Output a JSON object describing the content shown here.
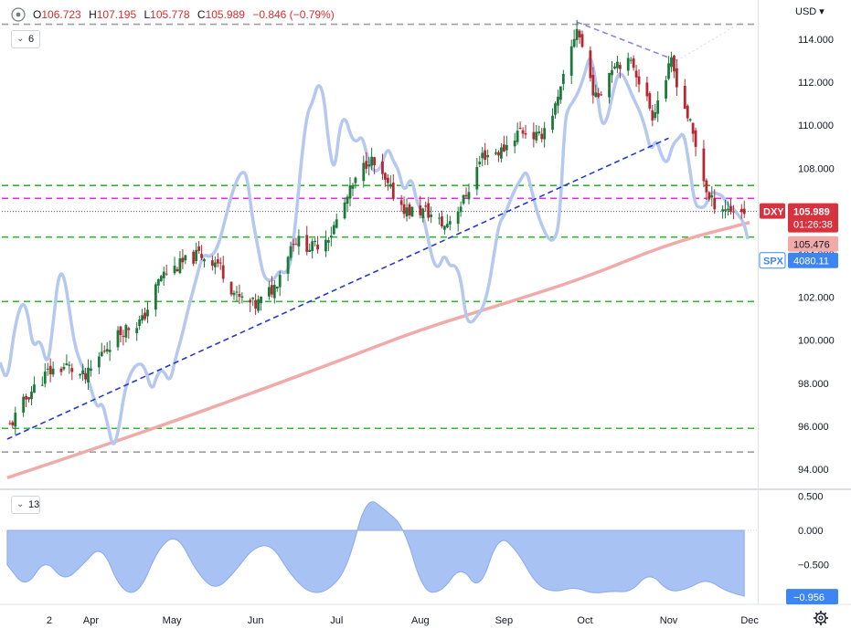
{
  "header": {
    "open_label": "O",
    "open": "106.723",
    "high_label": "H",
    "high": "107.195",
    "low_label": "L",
    "low": "105.778",
    "close_label": "C",
    "close": "105.989",
    "change": "−0.846 (−0.79%)"
  },
  "currency_menu": "USD ▾",
  "main_pane_indicator_count": "6",
  "sub_pane_indicator_count": "13",
  "labels": {
    "dxy_name": "DXY",
    "dxy_price": "105.989",
    "dxy_countdown": "01:26:38",
    "ma_value": "105.476",
    "spx_name": "SPX",
    "spx_price": "4080.11",
    "corr_value": "−0.956"
  },
  "colors": {
    "candle_up": "#1b7a3a",
    "candle_down": "#b22833",
    "spx_line": "#b4c8f0",
    "moving_average": "#f0aaa8",
    "trendline": "#2338d4",
    "support_resistance": "#36b536",
    "magenta_level": "#e62de6",
    "gray_level": "#9e9e9e",
    "correlation_fill": "#9ab7f2",
    "price_tag": "#d7333f",
    "spx_tag": "#3d86f2"
  },
  "chart_data": [
    {
      "type": "candlestick",
      "title": "",
      "x": [
        "2",
        "Apr",
        "May",
        "Jun",
        "Jul",
        "Aug",
        "Sep",
        "Oct",
        "Nov",
        "Dec"
      ],
      "ylim": [
        93.2,
        115.2
      ],
      "y_ticks": [
        "94.000",
        "96.000",
        "98.000",
        "100.000",
        "102.000",
        "104.000",
        "106.000",
        "108.000",
        "110.000",
        "112.000",
        "114.000"
      ],
      "y_tick_values": [
        94,
        96,
        98,
        100,
        102,
        104,
        106,
        108,
        110,
        112,
        114
      ],
      "grid": false,
      "series": [
        {
          "name": "DXY",
          "close_path": [
            [
              "2022-03-02",
              96.0
            ],
            [
              "2022-03-09",
              97.5
            ],
            [
              "2022-03-16",
              98.5
            ],
            [
              "2022-03-23",
              98.8
            ],
            [
              "2022-03-30",
              98.2
            ],
            [
              "2022-04-06",
              99.6
            ],
            [
              "2022-04-13",
              100.5
            ],
            [
              "2022-04-20",
              100.9
            ],
            [
              "2022-04-27",
              103.0
            ],
            [
              "2022-05-04",
              103.5
            ],
            [
              "2022-05-11",
              104.0
            ],
            [
              "2022-05-18",
              103.6
            ],
            [
              "2022-05-25",
              102.0
            ],
            [
              "2022-06-01",
              101.6
            ],
            [
              "2022-06-08",
              102.5
            ],
            [
              "2022-06-15",
              104.7
            ],
            [
              "2022-06-22",
              104.3
            ],
            [
              "2022-06-29",
              105.0
            ],
            [
              "2022-07-06",
              106.9
            ],
            [
              "2022-07-13",
              108.5
            ],
            [
              "2022-07-20",
              107.1
            ],
            [
              "2022-07-27",
              106.0
            ],
            [
              "2022-08-03",
              106.0
            ],
            [
              "2022-08-10",
              105.3
            ],
            [
              "2022-08-17",
              106.5
            ],
            [
              "2022-08-24",
              108.6
            ],
            [
              "2022-08-31",
              108.8
            ],
            [
              "2022-09-07",
              109.8
            ],
            [
              "2022-09-14",
              109.4
            ],
            [
              "2022-09-21",
              111.1
            ],
            [
              "2022-09-28",
              114.6
            ],
            [
              "2022-10-05",
              111.2
            ],
            [
              "2022-10-12",
              113.0
            ],
            [
              "2022-10-19",
              112.8
            ],
            [
              "2022-10-26",
              110.5
            ],
            [
              "2022-11-02",
              112.9
            ],
            [
              "2022-11-09",
              110.0
            ],
            [
              "2022-11-16",
              106.5
            ],
            [
              "2022-11-23",
              106.1
            ],
            [
              "2022-11-30",
              105.989
            ]
          ],
          "last_close": 105.989
        },
        {
          "name": "SPX",
          "overlay": true,
          "last_value": 4080.11
        },
        {
          "name": "200-day moving average",
          "path": [
            [
              "2022-03-01",
              93.6
            ],
            [
              "2022-04-01",
              94.9
            ],
            [
              "2022-05-01",
              96.2
            ],
            [
              "2022-06-01",
              97.6
            ],
            [
              "2022-07-01",
              99.0
            ],
            [
              "2022-08-01",
              100.5
            ],
            [
              "2022-09-01",
              101.7
            ],
            [
              "2022-10-01",
              102.9
            ],
            [
              "2022-11-01",
              104.5
            ],
            [
              "2022-12-01",
              105.476
            ]
          ],
          "last_value": 105.476
        }
      ],
      "horizontal_levels": [
        {
          "value": 114.7,
          "style": "dashed",
          "color": "gray"
        },
        {
          "value": 107.2,
          "style": "dashed",
          "color": "green"
        },
        {
          "value": 106.6,
          "style": "dashed",
          "color": "magenta"
        },
        {
          "value": 104.8,
          "style": "dashed",
          "color": "green"
        },
        {
          "value": 101.8,
          "style": "dashed",
          "color": "green"
        },
        {
          "value": 95.9,
          "style": "dashed",
          "color": "green"
        },
        {
          "value": 94.8,
          "style": "dashed",
          "color": "gray"
        }
      ],
      "trendlines": [
        {
          "from": [
            "2022-03-01",
            95.4
          ],
          "to": [
            "2022-11-01",
            109.4
          ],
          "color": "blue",
          "style": "dashed"
        },
        {
          "from": [
            "2022-09-28",
            114.8
          ],
          "to": [
            "2022-11-04",
            113.0
          ],
          "color": "purple",
          "style": "dashed"
        }
      ]
    },
    {
      "type": "area",
      "title": "",
      "series_name": "",
      "ylim": [
        -1.0,
        0.62
      ],
      "y_ticks": [
        "0.500",
        "0.000",
        "−0.500"
      ],
      "y_tick_values": [
        0.5,
        0.0,
        -0.5
      ],
      "values": [
        [
          "2022-03-01",
          -0.5
        ],
        [
          "2022-03-08",
          -0.85
        ],
        [
          "2022-03-15",
          -0.4
        ],
        [
          "2022-03-22",
          -0.75
        ],
        [
          "2022-03-29",
          -0.5
        ],
        [
          "2022-04-05",
          -0.2
        ],
        [
          "2022-04-12",
          -0.88
        ],
        [
          "2022-04-19",
          -0.92
        ],
        [
          "2022-04-26",
          -0.25
        ],
        [
          "2022-05-03",
          -0.05
        ],
        [
          "2022-05-10",
          -0.6
        ],
        [
          "2022-05-17",
          -0.88
        ],
        [
          "2022-05-24",
          -0.62
        ],
        [
          "2022-05-31",
          -0.25
        ],
        [
          "2022-06-07",
          -0.2
        ],
        [
          "2022-06-14",
          -0.65
        ],
        [
          "2022-06-21",
          -0.92
        ],
        [
          "2022-06-28",
          -0.88
        ],
        [
          "2022-07-05",
          -0.55
        ],
        [
          "2022-07-12",
          0.5
        ],
        [
          "2022-07-19",
          0.3
        ],
        [
          "2022-07-26",
          0.05
        ],
        [
          "2022-08-02",
          -0.9
        ],
        [
          "2022-08-09",
          -0.9
        ],
        [
          "2022-08-16",
          -0.5
        ],
        [
          "2022-08-23",
          -0.9
        ],
        [
          "2022-08-30",
          -0.05
        ],
        [
          "2022-09-06",
          -0.3
        ],
        [
          "2022-09-13",
          -0.8
        ],
        [
          "2022-09-20",
          -0.9
        ],
        [
          "2022-09-27",
          -0.82
        ],
        [
          "2022-10-04",
          -0.92
        ],
        [
          "2022-10-11",
          -0.88
        ],
        [
          "2022-10-18",
          -0.9
        ],
        [
          "2022-10-25",
          -0.6
        ],
        [
          "2022-11-01",
          -0.9
        ],
        [
          "2022-11-08",
          -0.85
        ],
        [
          "2022-11-15",
          -0.7
        ],
        [
          "2022-11-22",
          -0.88
        ],
        [
          "2022-11-29",
          -0.956
        ]
      ],
      "last_value": -0.956
    }
  ]
}
